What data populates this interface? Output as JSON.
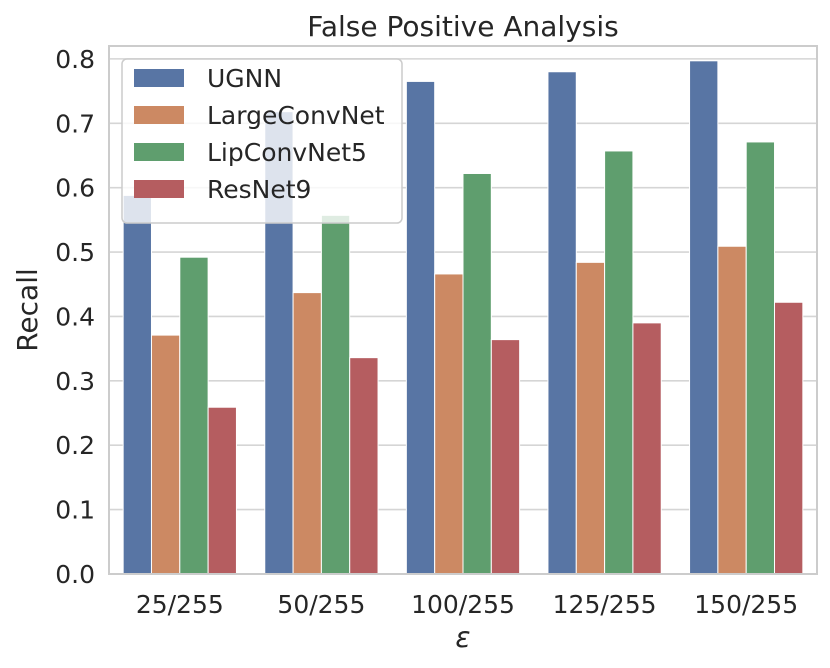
{
  "chart_data": {
    "type": "bar",
    "title": "False Positive Analysis",
    "xlabel": "ε",
    "ylabel": "Recall",
    "categories": [
      "25/255",
      "50/255",
      "100/255",
      "125/255",
      "150/255"
    ],
    "ylim": [
      0,
      0.82
    ],
    "yticks": [
      "0.0",
      "0.1",
      "0.2",
      "0.3",
      "0.4",
      "0.5",
      "0.6",
      "0.7",
      "0.8"
    ],
    "grid": true,
    "legend_position": "top-left",
    "series": [
      {
        "name": "UGNN",
        "color": "#5875a4",
        "values": [
          0.588,
          0.718,
          0.765,
          0.78,
          0.797
        ]
      },
      {
        "name": "LargeConvNet",
        "color": "#cc8963",
        "values": [
          0.371,
          0.437,
          0.466,
          0.484,
          0.509
        ]
      },
      {
        "name": "LipConvNet5",
        "color": "#5f9e6e",
        "values": [
          0.492,
          0.557,
          0.622,
          0.657,
          0.671
        ]
      },
      {
        "name": "ResNet9",
        "color": "#b55d60",
        "values": [
          0.259,
          0.336,
          0.364,
          0.39,
          0.422
        ]
      }
    ]
  }
}
